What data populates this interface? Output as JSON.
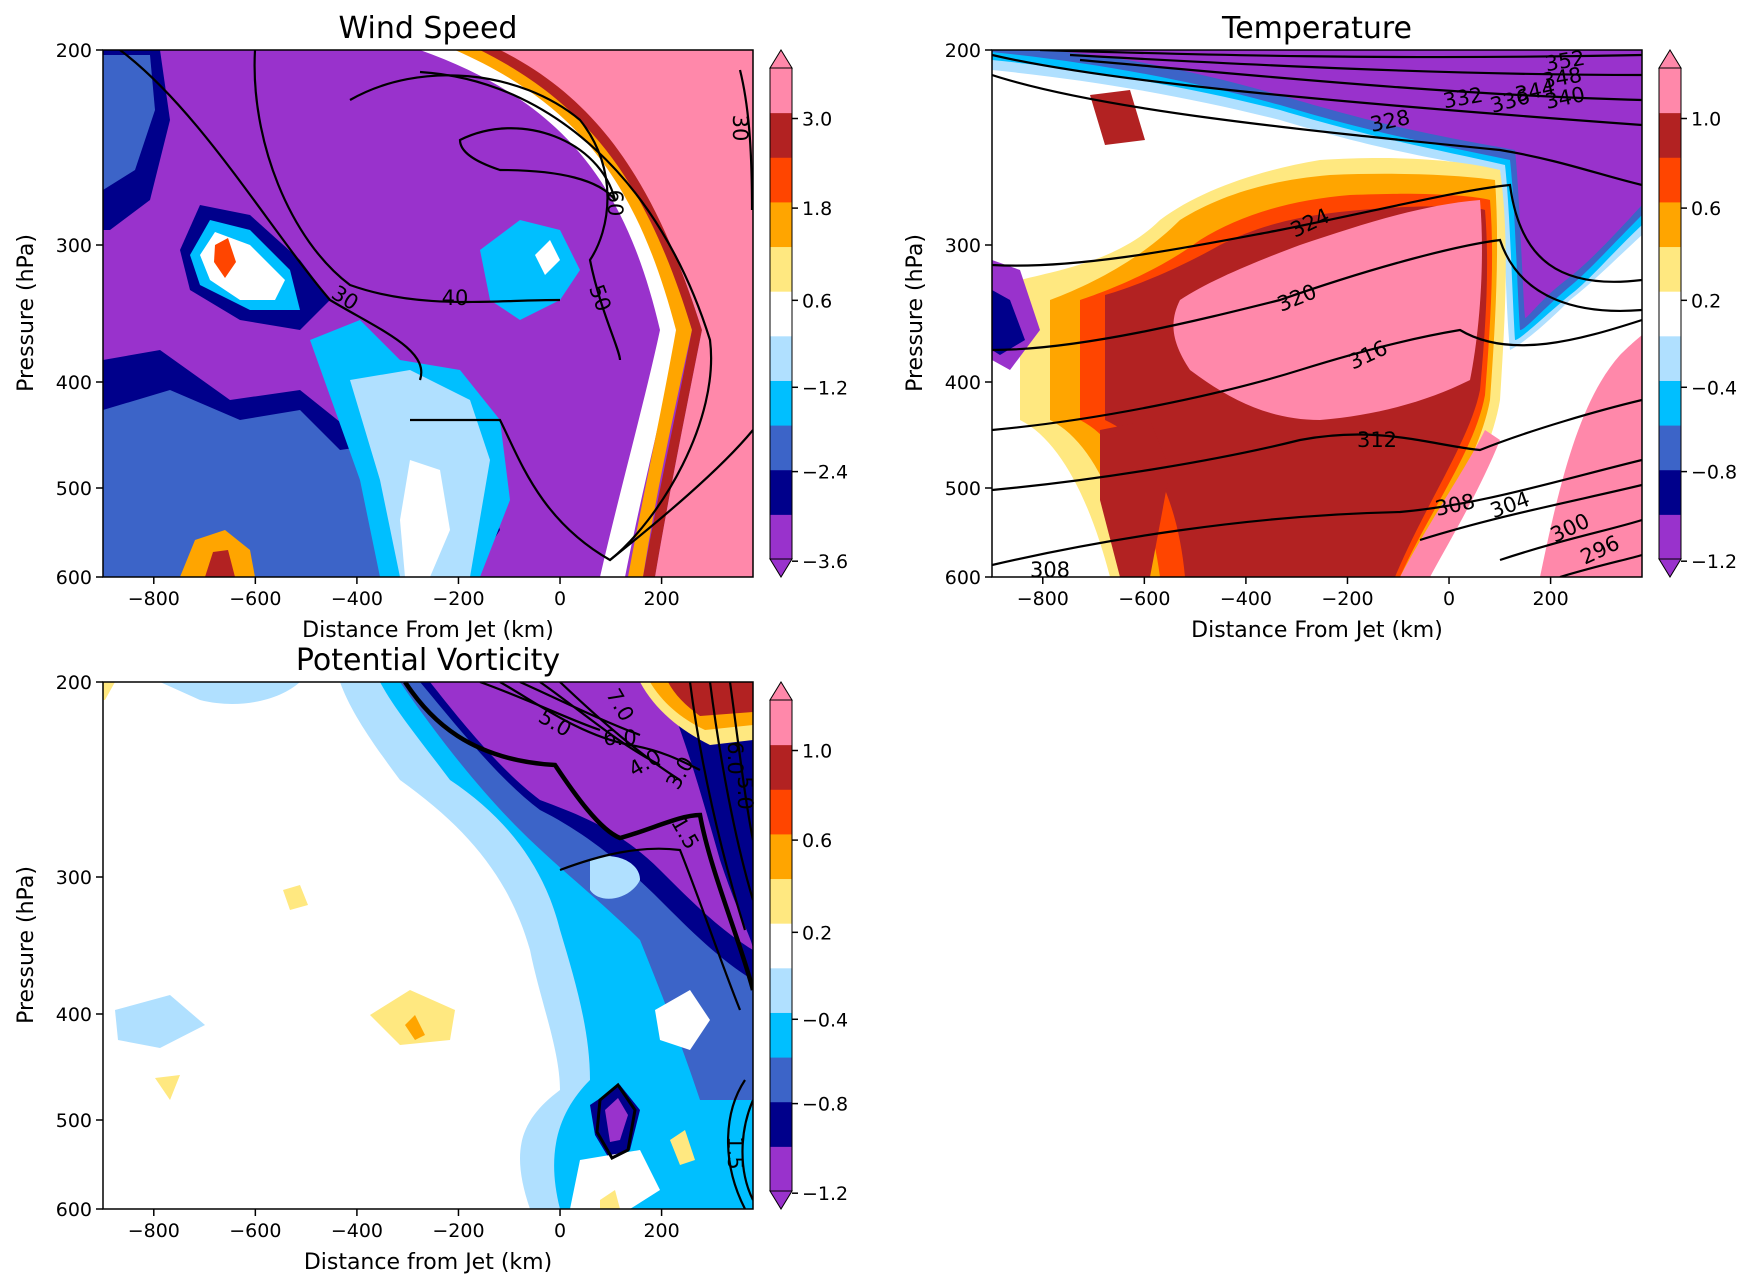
{
  "colormap": [
    "#9932cc",
    "#00008b",
    "#3c64c8",
    "#00bfff",
    "#b0e0ff",
    "#ffffff",
    "#ffe880",
    "#ffa500",
    "#ff4500",
    "#b22222",
    "#ff88aa"
  ],
  "chart_data": [
    {
      "type": "contour",
      "title": "Wind Speed",
      "xlabel": "Distance From Jet (km)",
      "ylabel": "Pressure (hPa)",
      "xlim": [
        -900,
        380
      ],
      "ylim": [
        600,
        200
      ],
      "y_scale": "log",
      "xticks": [
        "−800",
        "−600",
        "−400",
        "−200",
        "0",
        "200"
      ],
      "xtick_values": [
        -800,
        -600,
        -400,
        -200,
        0,
        200
      ],
      "yticks": [
        "200",
        "300",
        "400",
        "500",
        "600"
      ],
      "ytick_values": [
        200,
        300,
        400,
        500,
        600
      ],
      "colorbar_ticks": [
        "3.0",
        "1.8",
        "0.6",
        "−1.2",
        "−2.4",
        "−3.6"
      ],
      "contour_labels": [
        "30",
        "40",
        "50",
        "60",
        "30"
      ]
    },
    {
      "type": "contour",
      "title": "Temperature",
      "xlabel": "Distance From Jet (km)",
      "ylabel": "Pressure (hPa)",
      "xlim": [
        -900,
        380
      ],
      "ylim": [
        600,
        200
      ],
      "y_scale": "log",
      "xticks": [
        "−800",
        "−600",
        "−400",
        "−200",
        "0",
        "200"
      ],
      "xtick_values": [
        -800,
        -600,
        -400,
        -200,
        0,
        200
      ],
      "yticks": [
        "200",
        "300",
        "400",
        "500",
        "600"
      ],
      "ytick_values": [
        200,
        300,
        400,
        500,
        600
      ],
      "colorbar_ticks": [
        "1.0",
        "0.6",
        "0.2",
        "−0.4",
        "−0.8",
        "−1.2"
      ],
      "contour_labels": [
        "352",
        "348",
        "344",
        "340",
        "336",
        "332",
        "328",
        "324",
        "320",
        "316",
        "312",
        "308",
        "304",
        "300",
        "296",
        "308"
      ]
    },
    {
      "type": "contour",
      "title": "Potential Vorticity",
      "xlabel": "Distance from Jet (km)",
      "ylabel": "Pressure (hPa)",
      "xlim": [
        -900,
        380
      ],
      "ylim": [
        600,
        200
      ],
      "y_scale": "log",
      "xticks": [
        "−800",
        "−600",
        "−400",
        "−200",
        "0",
        "200"
      ],
      "xtick_values": [
        -800,
        -600,
        -400,
        -200,
        0,
        200
      ],
      "yticks": [
        "200",
        "300",
        "400",
        "500",
        "600"
      ],
      "ytick_values": [
        200,
        300,
        400,
        500,
        600
      ],
      "colorbar_ticks": [
        "1.0",
        "0.6",
        "0.2",
        "−0.4",
        "−0.8",
        "−1.2"
      ],
      "contour_labels": [
        "7.0",
        "5.0",
        "6.0",
        "4.0",
        "3.0",
        "6.0",
        "5.0",
        "1.5",
        "1.5"
      ]
    }
  ]
}
